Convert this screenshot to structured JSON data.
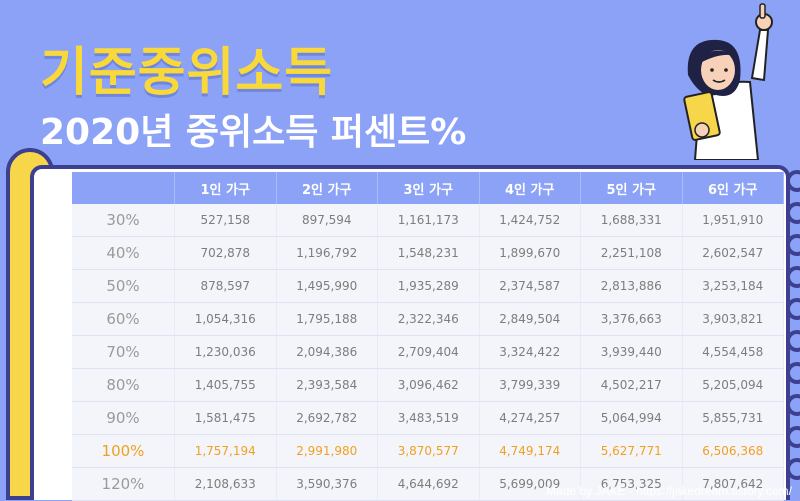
{
  "title": "기준중위소득",
  "subtitle": "2020년 중위소득 퍼센트%",
  "table": {
    "headers": [
      "",
      "1인 가구",
      "2인 가구",
      "3인 가구",
      "4인 가구",
      "5인 가구",
      "6인 가구"
    ],
    "rows": [
      {
        "pct": "30%",
        "values": [
          "527,158",
          "897,594",
          "1,161,173",
          "1,424,752",
          "1,688,331",
          "1,951,910"
        ]
      },
      {
        "pct": "40%",
        "values": [
          "702,878",
          "1,196,792",
          "1,548,231",
          "1,899,670",
          "2,251,108",
          "2,602,547"
        ]
      },
      {
        "pct": "50%",
        "values": [
          "878,597",
          "1,495,990",
          "1,935,289",
          "2,374,587",
          "2,813,886",
          "3,253,184"
        ]
      },
      {
        "pct": "60%",
        "values": [
          "1,054,316",
          "1,795,188",
          "2,322,346",
          "2,849,504",
          "3,376,663",
          "3,903,821"
        ]
      },
      {
        "pct": "70%",
        "values": [
          "1,230,036",
          "2,094,386",
          "2,709,404",
          "3,324,422",
          "3,939,440",
          "4,554,458"
        ]
      },
      {
        "pct": "80%",
        "values": [
          "1,405,755",
          "2,393,584",
          "3,096,462",
          "3,799,339",
          "4,502,217",
          "5,205,094"
        ]
      },
      {
        "pct": "90%",
        "values": [
          "1,581,475",
          "2,692,782",
          "3,483,519",
          "4,274,257",
          "5,064,994",
          "5,855,731"
        ]
      },
      {
        "pct": "100%",
        "values": [
          "1,757,194",
          "2,991,980",
          "3,870,577",
          "4,749,174",
          "5,627,771",
          "6,506,368"
        ]
      },
      {
        "pct": "120%",
        "values": [
          "2,108,633",
          "3,590,376",
          "4,644,692",
          "5,699,009",
          "6,753,325",
          "7,807,642"
        ]
      }
    ]
  },
  "footer": "Made by JAKE - https://jakedream.tistory.com/",
  "colors": {
    "background": "#8ba2f7",
    "title": "#f9d93a",
    "highlight": "#f0a021"
  }
}
